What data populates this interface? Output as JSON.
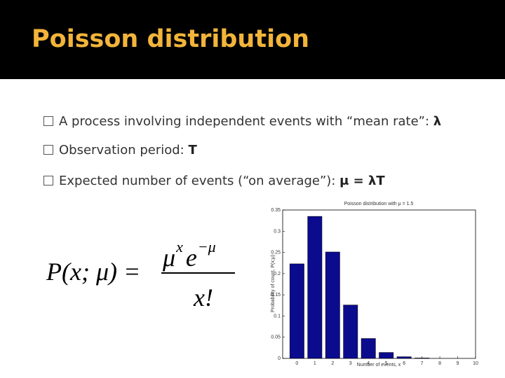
{
  "header": {
    "title": "Poisson distribution"
  },
  "bullets": [
    {
      "text": "A process involving independent events with “mean rate”: ",
      "bold": "λ"
    },
    {
      "text": "Observation period: ",
      "bold": "T"
    },
    {
      "text": "Expected number of events (“on average”): ",
      "bold": "μ = λT"
    }
  ],
  "formula": {
    "lhs": "P(x; μ) =",
    "numerator": [
      {
        "base": "μ",
        "sup": "x"
      },
      {
        "base": "e",
        "sup": "−μ"
      }
    ],
    "denominator": "x!"
  },
  "chart_data": {
    "type": "bar",
    "title": "Poisson distribution with μ = 1.5",
    "x_label": "Number of events, x",
    "y_label": "Probability of count, P(x;μ)",
    "x": [
      0,
      1,
      2,
      3,
      4,
      5,
      6,
      7,
      8,
      9,
      10
    ],
    "values": [
      0.223,
      0.335,
      0.251,
      0.126,
      0.047,
      0.014,
      0.004,
      0.001,
      0,
      0,
      0
    ],
    "color": "#0b0b8e",
    "xlim": [
      -0.8,
      10
    ],
    "xticks": [
      0,
      1,
      2,
      3,
      4,
      5,
      6,
      7,
      8,
      9,
      10
    ],
    "ylim": [
      0,
      0.35
    ],
    "yticks": [
      0,
      0.05,
      0.1,
      0.15,
      0.2,
      0.25,
      0.3,
      0.35
    ]
  }
}
